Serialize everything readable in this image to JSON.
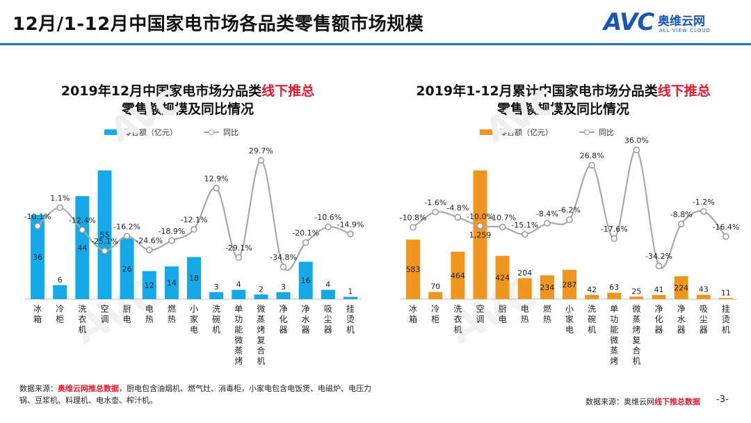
{
  "header": {
    "title": "12月/1-12月中国家电市场各品类零售额市场规模",
    "logo_text": "AVC",
    "logo_cn": "奥维云网",
    "logo_en": "ALL VIEW CLOUD"
  },
  "colors": {
    "accent_rule": "#1f6fd1",
    "highlight": "#e8192c",
    "line": "#a8a8a8"
  },
  "legend_left": {
    "bar": "零售额（亿元）",
    "line": "同比"
  },
  "legend_right": {
    "bar": "零售额（亿元）",
    "line": "同比"
  },
  "title_left": {
    "main": "2019年12月中国家电市场分品类",
    "highlight": "线下推总",
    "line2": "零售额规模及同比情况"
  },
  "title_right": {
    "main": "2019年1-12月累计中国家电市场分品类",
    "highlight": "线下推总",
    "line2": "零售额规模及同比情况"
  },
  "footnote": {
    "prefix": "数据来源：",
    "highlight": "奥维云网推总数据",
    "rest": "，厨电包含油烟机、燃气灶、消毒柜，小家电包含电饭煲、电磁炉、电压力锅、豆浆机、料理机、电水壶、榨汁机。"
  },
  "source_right": {
    "prefix": "数据来源：奥维云网",
    "highlight": "线下推总数据"
  },
  "page_number": "-3-",
  "chart_data": [
    {
      "type": "bar",
      "title": "2019年12月中国家电市场分品类线下推总零售额规模及同比情况",
      "categories": [
        "冰箱",
        "冷柜",
        "洗衣机",
        "空调",
        "厨电",
        "电热",
        "燃热",
        "小家电",
        "洗碗机",
        "单功能微蒸烤",
        "微蒸烤复合机",
        "净化器",
        "净水器",
        "吸尘器",
        "挂烫机"
      ],
      "series": [
        {
          "name": "零售额（亿元）",
          "type": "bar",
          "color": "#14aaea",
          "values": [
            36,
            6,
            44,
            55,
            26,
            12,
            14,
            18,
            3,
            4,
            2,
            3,
            16,
            4,
            1
          ],
          "labels": [
            "36",
            "6",
            "44",
            "55",
            "26",
            "12",
            "14",
            "18",
            "3",
            "4",
            "2",
            "3",
            "16",
            "4",
            "1"
          ]
        },
        {
          "name": "同比",
          "type": "line",
          "color": "#a8a8a8",
          "values": [
            -10.1,
            1.1,
            -12.4,
            -25.1,
            -16.2,
            -24.6,
            -18.9,
            -12.1,
            12.9,
            -29.1,
            29.7,
            -34.8,
            -20.1,
            -10.6,
            -14.9
          ],
          "labels": [
            "-10.1%",
            "1.1%",
            "-12.4%",
            "-25.1%",
            "-16.2%",
            "-24.6%",
            "-18.9%",
            "-12.1%",
            "12.9%",
            "-29.1%",
            "29.7%",
            "-34.8%",
            "-20.1%",
            "-10.6%",
            "-14.9%"
          ]
        }
      ],
      "legend": "top-left"
    },
    {
      "type": "bar",
      "title": "2019年1-12月累计中国家电市场分品类线下推总零售额规模及同比情况",
      "categories": [
        "冰箱",
        "冷柜",
        "洗衣机",
        "空调",
        "厨电",
        "电热",
        "燃热",
        "小家电",
        "洗碗机",
        "单功能微蒸烤",
        "微蒸烤复合机",
        "净化器",
        "净水器",
        "吸尘器",
        "挂烫机"
      ],
      "series": [
        {
          "name": "零售额（亿元）",
          "type": "bar",
          "color": "#f0961e",
          "values": [
            583,
            70,
            464,
            1259,
            424,
            204,
            234,
            287,
            42,
            63,
            25,
            41,
            224,
            43,
            11
          ],
          "labels": [
            "583",
            "70",
            "464",
            "1,259",
            "424",
            "204",
            "234",
            "287",
            "42",
            "63",
            "25",
            "41",
            "224",
            "43",
            "11"
          ]
        },
        {
          "name": "同比",
          "type": "line",
          "color": "#a8a8a8",
          "values": [
            -10.8,
            -1.6,
            -4.8,
            -10.0,
            -10.7,
            -15.1,
            -8.4,
            -6.2,
            26.8,
            -17.6,
            36.0,
            -34.2,
            -8.8,
            -1.2,
            -16.4
          ],
          "labels": [
            "-10.8%",
            "-1.6%",
            "-4.8%",
            "-10.0%",
            "-10.7%",
            "-15.1%",
            "-8.4%",
            "-6.2%",
            "26.8%",
            "-17.6%",
            "36.0%",
            "-34.2%",
            "-8.8%",
            "-1.2%",
            "-16.4%"
          ]
        }
      ],
      "legend": "top-left"
    }
  ]
}
